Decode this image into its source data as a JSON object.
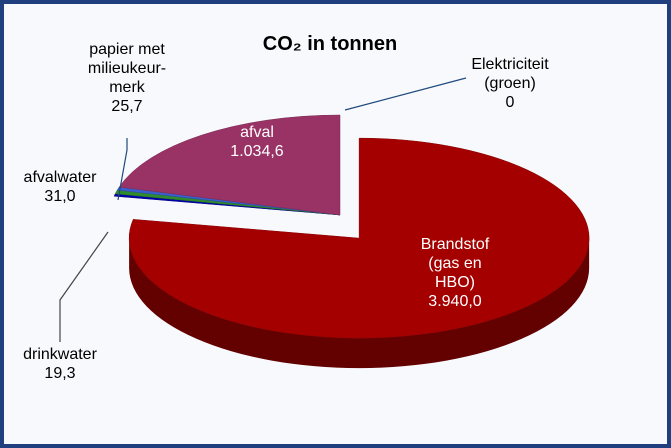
{
  "chart_data": {
    "type": "pie3d",
    "title": "CO₂ in tonnen",
    "categories": [
      "Brandstof\n(gas en\nHBO)",
      "drinkwater",
      "afvalwater",
      "papier met\nmilieukeur-\nmerk",
      "afval",
      "Elektriciteit\n(groen)"
    ],
    "values": [
      3940.0,
      19.3,
      31.0,
      25.7,
      1034.6,
      0
    ],
    "value_labels": [
      "3.940,0",
      "19,3",
      "31,0",
      "25,7",
      "1.034,6",
      "0"
    ],
    "colors": [
      "#a50000",
      "#0000a8",
      "#2e8b2e",
      "#3a5fcd",
      "#993366",
      "#ffffff"
    ]
  }
}
